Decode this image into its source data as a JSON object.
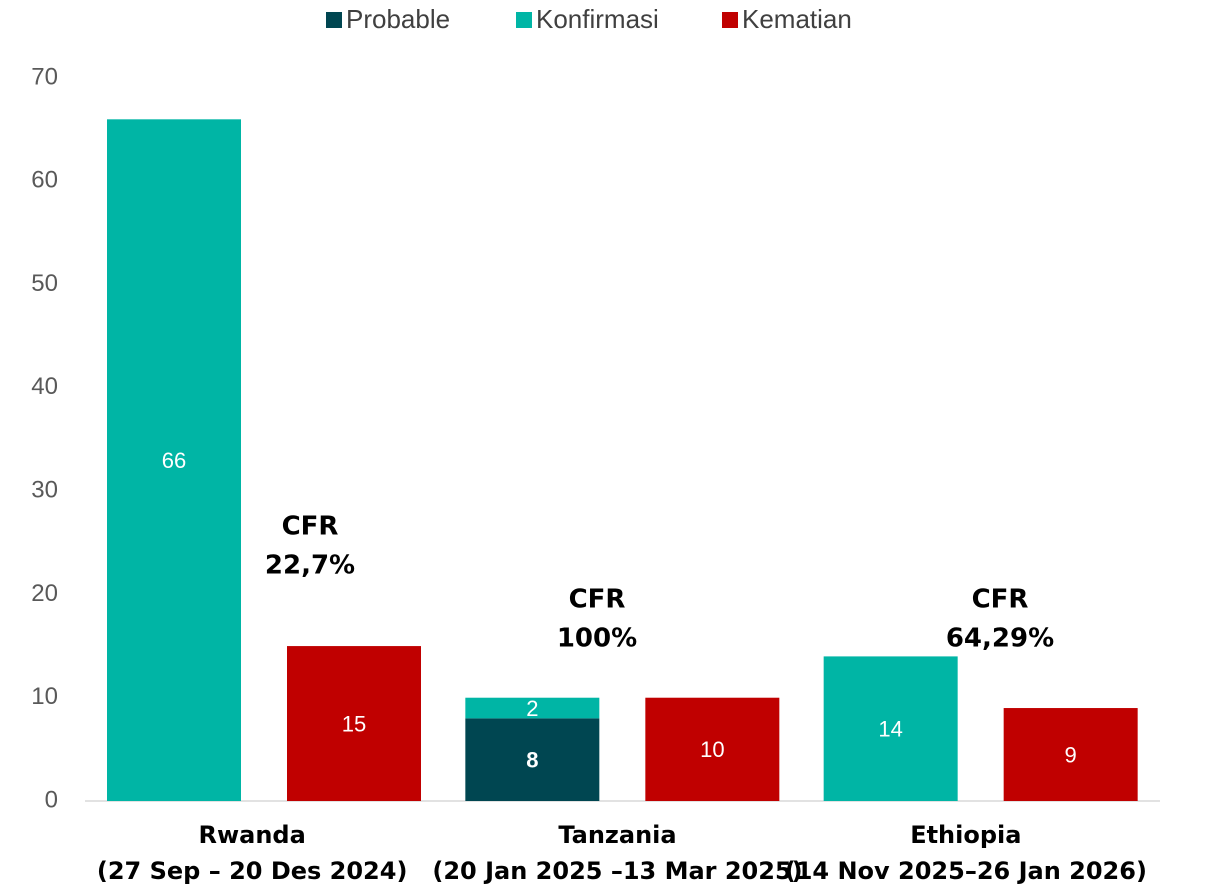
{
  "chart_data": {
    "type": "bar",
    "categories": [
      [
        "Rwanda",
        "(27 Sep – 20 Des 2024)"
      ],
      [
        "Tanzania",
        "(20 Jan 2025 –13 Mar 2025)"
      ],
      [
        "Ethiopia",
        "(14 Nov 2025–26 Jan 2026)"
      ]
    ],
    "series": [
      {
        "name": "Probable",
        "color": "#004651",
        "values": [
          null,
          8,
          null
        ]
      },
      {
        "name": "Konfirmasi",
        "color": "#00b5a5",
        "values": [
          66,
          2,
          14
        ]
      },
      {
        "name": "Kematian",
        "color": "#c00000",
        "values": [
          15,
          10,
          9
        ]
      }
    ],
    "annotations": [
      {
        "lines": [
          "CFR",
          "22,7%"
        ]
      },
      {
        "lines": [
          "CFR",
          "100%"
        ]
      },
      {
        "lines": [
          "CFR",
          "64,29%"
        ]
      }
    ],
    "ylim": [
      0,
      70
    ],
    "yticks": [
      0,
      10,
      20,
      30,
      40,
      50,
      60,
      70
    ],
    "grid": false,
    "legend": "top"
  }
}
